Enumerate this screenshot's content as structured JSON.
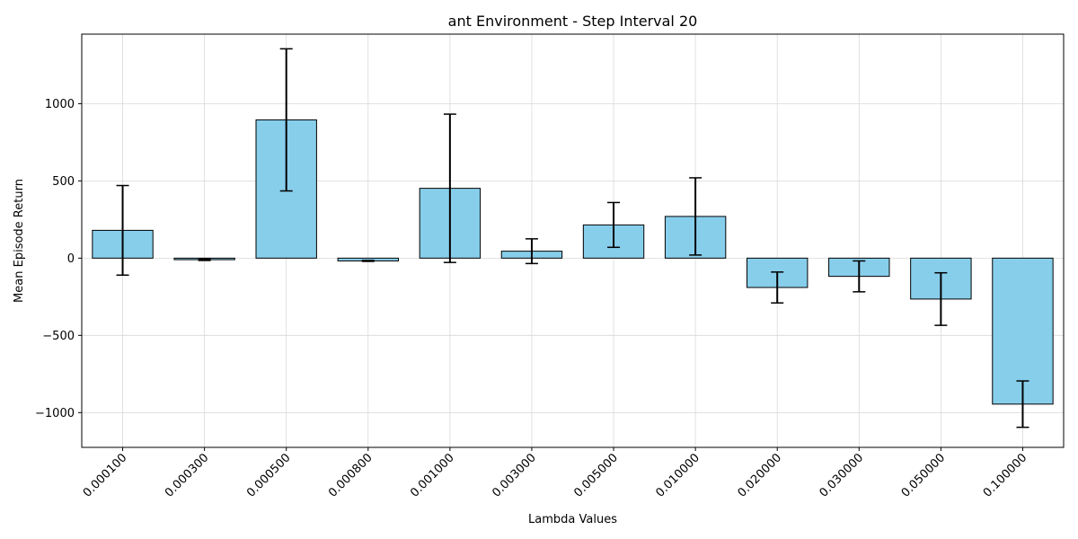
{
  "chart_data": {
    "type": "bar",
    "title": "ant Environment - Step Interval 20",
    "xlabel": "Lambda Values",
    "ylabel": "Mean Episode Return",
    "categories": [
      "0.000100",
      "0.000300",
      "0.000500",
      "0.000800",
      "0.001000",
      "0.003000",
      "0.005000",
      "0.010000",
      "0.020000",
      "0.030000",
      "0.050000",
      "0.100000"
    ],
    "values": [
      180,
      -10,
      895,
      -18,
      452,
      45,
      215,
      270,
      -190,
      -118,
      -265,
      -945
    ],
    "errors": [
      290,
      5,
      460,
      3,
      480,
      80,
      145,
      250,
      100,
      100,
      170,
      150
    ],
    "ylim": [
      -1225,
      1450
    ],
    "yticks": [
      -1000,
      -500,
      0,
      500,
      1000
    ],
    "ytick_labels": [
      "−1000",
      "−500",
      "0",
      "500",
      "1000"
    ],
    "grid": true,
    "bar_color": "#87ceeb",
    "edge_color": "#000000"
  }
}
